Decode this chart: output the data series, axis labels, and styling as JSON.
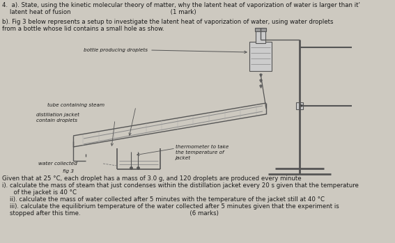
{
  "bg_color": "#cdc9c0",
  "fig_width": 5.67,
  "fig_height": 3.49,
  "dpi": 100,
  "text_color": "#1a1a1a",
  "line_color": "#555555",
  "line1": "4.  a). State, using the kinetic molecular theory of matter, why the latent heat of vaporization of water is larger than it'",
  "line2": "    latent heat of fusion                                                    (1 mark)",
  "line3": "b). Fig 3 below represents a setup to investigate the latent heat of vaporization of water, using water droplets",
  "line4": "from a bottle whose lid contains a small hole as show.",
  "label_bottle": "bottle producing droplets",
  "label_tube": "tube containing steam",
  "label_jacket": "distillation jacket",
  "label_jacket2": "contain droplets",
  "label_thermometer": "thermometer to take",
  "label_thermometer2": "the temperature of",
  "label_thermometer3": "jacket",
  "label_water": "water collected",
  "label_fig": "fig 3",
  "given_text": "Given that at 25 °C, each droplet has a mass of 3.0 g, and 120 droplets are produced every minute",
  "q1": "i). calculate the mass of steam that just condenses within the distillation jacket every 20 s given that the temperature",
  "q1b": "      of the jacket is 40 °C",
  "q2": "    ii). calculate the mass of water collected after 5 minutes with the temperature of the jacket still at 40 °C",
  "q3": "    iii). calculate the equilibrium temperature of the water collected after 5 minutes given that the experiment is",
  "q3b": "    stopped after this time.                                                         (6 marks)"
}
